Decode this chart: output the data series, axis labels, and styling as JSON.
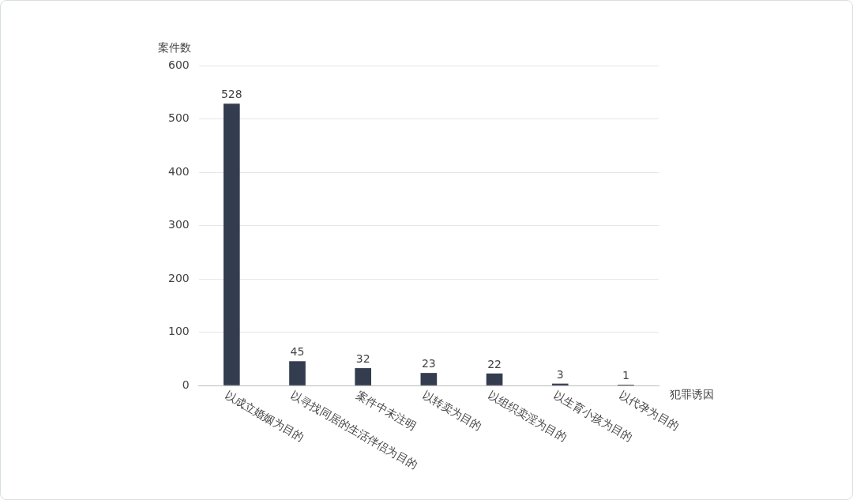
{
  "chart_data": {
    "type": "bar",
    "ylabel": "案件数",
    "xlabel": "犯罪诱因",
    "categories": [
      "以成立婚姻为目的",
      "以寻找同居的生活伴侣为目的",
      "案件中未注明",
      "以转卖为目的",
      "以组织卖淫为目的",
      "以生育小孩为目的",
      "以代孕为目的"
    ],
    "values": [
      528,
      45,
      32,
      23,
      22,
      3,
      1
    ],
    "color": "#333d4f",
    "ylim": [
      0,
      600
    ],
    "yticks": [
      0,
      100,
      200,
      300,
      400,
      500,
      600
    ],
    "grid": "y",
    "data_labels": true,
    "legend": false
  }
}
